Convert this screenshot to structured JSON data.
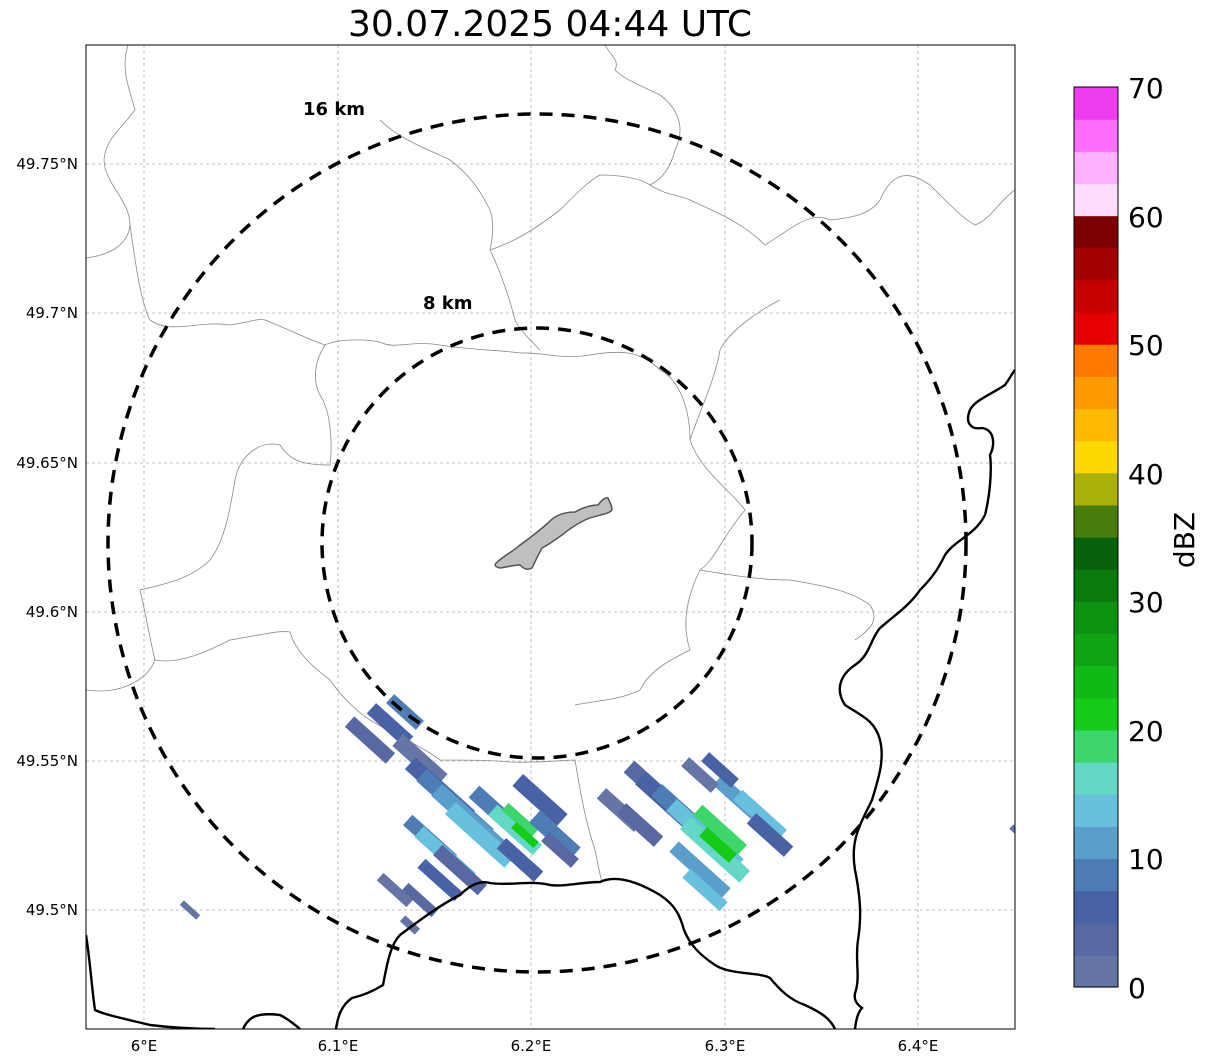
{
  "title": "30.07.2025 04:44 UTC",
  "map": {
    "lon_ticks": [
      "6°E",
      "6.1°E",
      "6.2°E",
      "6.3°E",
      "6.4°E"
    ],
    "lat_ticks": [
      "49.75°N",
      "49.7°N",
      "49.65°N",
      "49.6°N",
      "49.55°N",
      "49.5°N"
    ],
    "lon_range": [
      5.97,
      6.45
    ],
    "lat_range": [
      49.46,
      49.79
    ],
    "range_rings": [
      {
        "label": "16 km",
        "radius_km": 16
      },
      {
        "label": "8 km",
        "radius_km": 8
      }
    ],
    "radar_center": {
      "lon": 6.2,
      "lat": 49.623
    },
    "grid": true,
    "city_fill": "#bfbfbf"
  },
  "colorbar": {
    "label": "dBZ",
    "ticks": [
      "70",
      "60",
      "50",
      "40",
      "30",
      "20",
      "10",
      "0"
    ],
    "range": [
      0,
      70
    ],
    "step": 2.5,
    "colors": [
      "#6475a6",
      "#5868a2",
      "#4862a5",
      "#4e7db5",
      "#5a9fcb",
      "#67c1de",
      "#63d8c7",
      "#3dd66d",
      "#14cb18",
      "#10b914",
      "#0fa512",
      "#0c9210",
      "#0a7c0e",
      "#07620c",
      "#487c0b",
      "#aab10a",
      "#fed800",
      "#feb900",
      "#fe9b00",
      "#fe7a00",
      "#e50000",
      "#c40000",
      "#a30000",
      "#7c0000",
      "#fedcfe",
      "#fdb0fd",
      "#fd6efd",
      "#ef3cef"
    ]
  }
}
